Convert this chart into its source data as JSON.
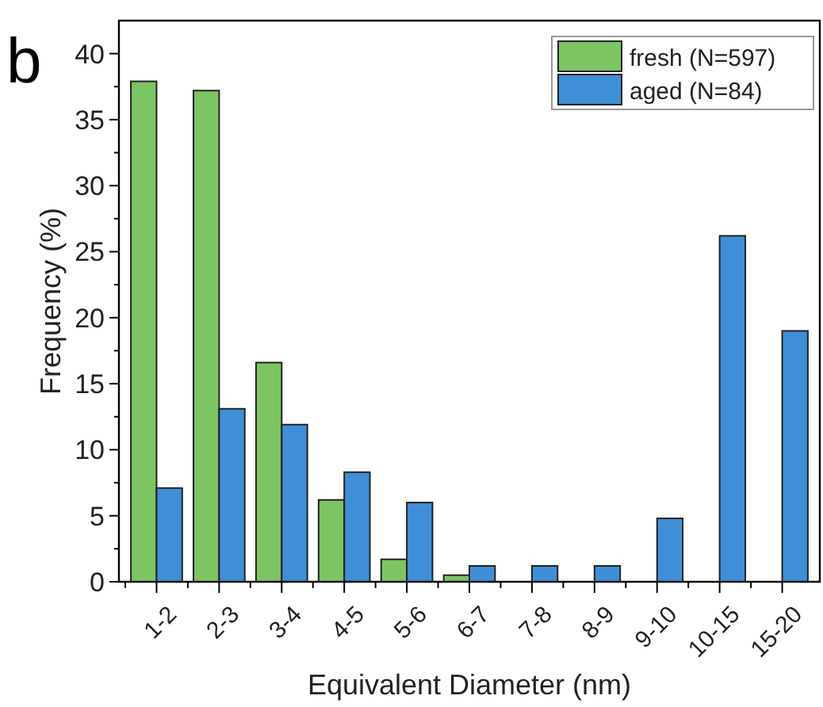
{
  "chart_data": {
    "type": "bar",
    "xlabel": "Equivalent Diameter (nm)",
    "ylabel": "Frequency (%)",
    "annotations": [
      "b"
    ],
    "categories": [
      "1-2",
      "2-3",
      "3-4",
      "4-5",
      "5-6",
      "6-7",
      "7-8",
      "8-9",
      "9-10",
      "10-15",
      "15-20"
    ],
    "series": [
      {
        "name": "fresh (N=597)",
        "color": "#7dc462",
        "values": [
          37.9,
          37.2,
          16.6,
          6.2,
          1.7,
          0.5,
          null,
          null,
          null,
          null,
          null
        ]
      },
      {
        "name": "aged (N=84)",
        "color": "#3f8fd8",
        "values": [
          7.1,
          13.1,
          11.9,
          8.3,
          6.0,
          1.2,
          1.2,
          1.2,
          4.8,
          26.2,
          19.0
        ]
      }
    ],
    "ylim": [
      0,
      42.5
    ],
    "yticks": [
      0,
      {
        "value": 2.5,
        "label": null
      },
      5,
      {
        "value": 7.5,
        "label": null
      },
      10,
      {
        "value": 12.5,
        "label": null
      },
      15,
      {
        "value": 17.5,
        "label": null
      },
      20,
      {
        "value": 22.5,
        "label": null
      },
      25,
      {
        "value": 27.5,
        "label": null
      },
      30,
      {
        "value": 32.5,
        "label": null
      },
      35,
      {
        "value": 37.5,
        "label": null
      },
      40
    ],
    "legend": "top right",
    "grid": false
  }
}
